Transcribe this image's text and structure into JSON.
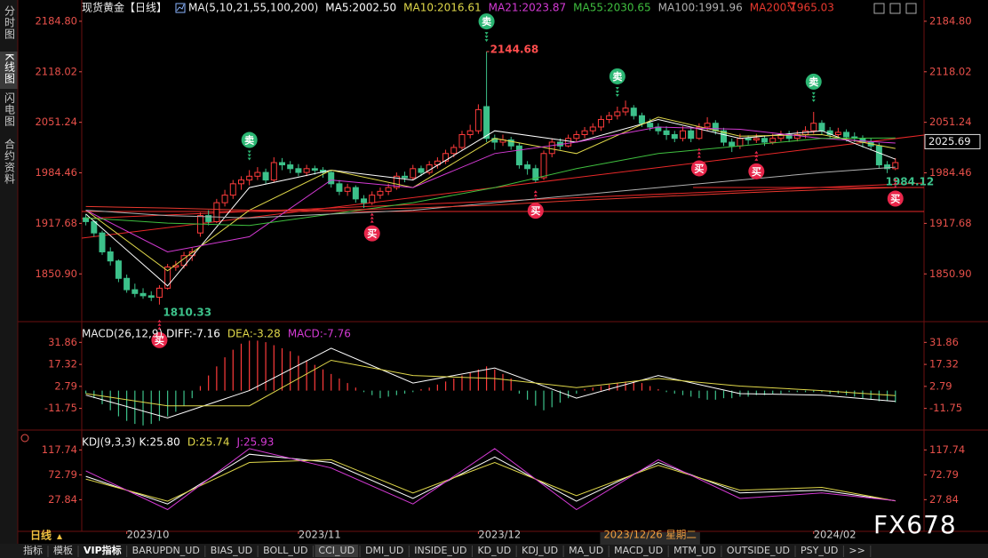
{
  "sidebar": [
    "分时图",
    "K线图",
    "闪电图",
    "合约资料"
  ],
  "period": "日线",
  "watermark": "FX678",
  "tabs": [
    "指标",
    "模板",
    "VIP指标",
    "BARUPDN_UD",
    "BIAS_UD",
    "BOLL_UD",
    "CCI_UD",
    "DMI_UD",
    "INSIDE_UD",
    "KD_UD",
    "KDJ_UD",
    "MA_UD",
    "MACD_UD",
    "MTM_UD",
    "OUTSIDE_UD",
    "PSY_UD",
    ">>"
  ],
  "chart_data": [
    {
      "type": "candlestick",
      "title": "现货黄金【日线】",
      "subtitle": "MA(5,10,21,55,100,200)",
      "up_color": "#ff3b3b",
      "down_color": "#3cc18a",
      "xlim": [
        -0.5,
        102.5
      ],
      "xticks": [
        {
          "value": 5,
          "label": "2023/10"
        },
        {
          "value": 26,
          "label": "2023/11"
        },
        {
          "value": 48,
          "label": "2023/12"
        },
        {
          "value": 89,
          "label": "2024/02"
        }
      ],
      "cursor": {
        "value": 69,
        "label": "2023/12/26 星期二"
      },
      "ylim": [
        1796,
        2198.8
      ],
      "yticks": [
        {
          "value": 2184.8,
          "label": "2184.80"
        },
        2118.02,
        2051.24,
        1984.46,
        1917.68,
        {
          "value": 1850.9,
          "label": "1850.90"
        }
      ],
      "price_tag": 2025.69,
      "sell_signals": {
        "label": "卖",
        "indices": [
          20,
          49,
          65,
          89
        ]
      },
      "buy_signals": {
        "label": "买",
        "indices": [
          9,
          35,
          55,
          75,
          82,
          99
        ]
      },
      "open": [
        1925,
        1920,
        1905,
        1880,
        1868,
        1845,
        1830,
        1825,
        1822,
        1820,
        1832,
        1860,
        1862,
        1875,
        1905,
        1928,
        1920,
        1945,
        1955,
        1970,
        1975,
        1980,
        1985,
        1975,
        1998,
        1995,
        1990,
        1985,
        1990,
        1988,
        1985,
        1970,
        1960,
        1965,
        1950,
        1945,
        1955,
        1960,
        1965,
        1980,
        1978,
        1990,
        1985,
        1995,
        2000,
        2010,
        2018,
        2035,
        2040,
        2072,
        2030,
        2025,
        2028,
        2020,
        1995,
        1990,
        1978,
        2010,
        2025,
        2020,
        2030,
        2035,
        2040,
        2045,
        2055,
        2060,
        2065,
        2070,
        2060,
        2050,
        2045,
        2040,
        2035,
        2030,
        2040,
        2030,
        2045,
        2050,
        2040,
        2025,
        2020,
        2030,
        2028,
        2030,
        2025,
        2030,
        2035,
        2030,
        2035,
        2040,
        2050,
        2040,
        2035,
        2038,
        2032,
        2030,
        2025,
        2020,
        1995,
        1990
      ],
      "high": [
        1930,
        1922,
        1908,
        1886,
        1870,
        1850,
        1838,
        1832,
        1828,
        1836,
        1864,
        1868,
        1880,
        1885,
        1932,
        1935,
        1950,
        1962,
        1975,
        1980,
        1988,
        1992,
        1990,
        2005,
        2004,
        2000,
        1996,
        1995,
        1994,
        1992,
        1988,
        1975,
        1970,
        1968,
        1955,
        1960,
        1965,
        1970,
        1985,
        1986,
        1995,
        1994,
        2000,
        2005,
        2015,
        2022,
        2040,
        2048,
        2075,
        2144.68,
        2035,
        2035,
        2032,
        2024,
        2000,
        1995,
        2014,
        2030,
        2030,
        2035,
        2040,
        2045,
        2050,
        2060,
        2065,
        2072,
        2080,
        2074,
        2064,
        2056,
        2050,
        2046,
        2040,
        2046,
        2044,
        2050,
        2058,
        2054,
        2044,
        2030,
        2036,
        2034,
        2036,
        2034,
        2036,
        2040,
        2040,
        2040,
        2046,
        2065,
        2054,
        2045,
        2044,
        2042,
        2038,
        2034,
        2030,
        2024,
        2000,
        2004
      ],
      "low": [
        1915,
        1900,
        1876,
        1862,
        1840,
        1826,
        1820,
        1818,
        1815,
        1810.33,
        1830,
        1855,
        1858,
        1868,
        1900,
        1915,
        1918,
        1940,
        1950,
        1962,
        1968,
        1975,
        1970,
        1972,
        1988,
        1984,
        1980,
        1980,
        1982,
        1978,
        1965,
        1955,
        1954,
        1945,
        1938,
        1942,
        1950,
        1955,
        1962,
        1972,
        1975,
        1980,
        1982,
        1990,
        1996,
        2005,
        2015,
        2030,
        2036,
        2025,
        2015,
        2020,
        2015,
        1990,
        1982,
        1972,
        1975,
        2005,
        2015,
        2018,
        2025,
        2030,
        2035,
        2040,
        2050,
        2055,
        2060,
        2055,
        2045,
        2040,
        2035,
        2028,
        2025,
        2026,
        2025,
        2028,
        2040,
        2035,
        2020,
        2012,
        2016,
        2022,
        2024,
        2020,
        2022,
        2026,
        2025,
        2026,
        2030,
        2036,
        2035,
        2030,
        2030,
        2026,
        2025,
        2018,
        2014,
        1990,
        1984.12,
        1988
      ],
      "close": [
        1920,
        1905,
        1880,
        1868,
        1845,
        1830,
        1825,
        1822,
        1820,
        1832,
        1860,
        1862,
        1875,
        1880,
        1928,
        1920,
        1945,
        1955,
        1970,
        1975,
        1980,
        1985,
        1975,
        1998,
        1995,
        1990,
        1985,
        1990,
        1988,
        1985,
        1970,
        1960,
        1965,
        1950,
        1945,
        1955,
        1960,
        1965,
        1980,
        1978,
        1990,
        1985,
        1995,
        2000,
        2010,
        2018,
        2035,
        2040,
        2068,
        2030,
        2025,
        2028,
        2020,
        1995,
        1990,
        1975,
        2010,
        2025,
        2020,
        2030,
        2035,
        2040,
        2045,
        2055,
        2060,
        2065,
        2070,
        2060,
        2050,
        2045,
        2040,
        2035,
        2030,
        2040,
        2030,
        2045,
        2050,
        2040,
        2025,
        2020,
        2030,
        2028,
        2030,
        2025,
        2030,
        2035,
        2030,
        2035,
        2040,
        2050,
        2040,
        2035,
        2038,
        2032,
        2030,
        2025,
        2020,
        1995,
        1990,
        1998
      ],
      "series": [
        {
          "name": "MA5:2002.50",
          "color": "#ffffff",
          "x": [
            0,
            10,
            20,
            30,
            40,
            50,
            60,
            70,
            80,
            90,
            99
          ],
          "values": [
            1930,
            1835,
            1965,
            1988,
            1975,
            2040,
            2025,
            2055,
            2030,
            2040,
            2002.5
          ]
        },
        {
          "name": "MA10:2016.61",
          "color": "#e0d84a",
          "x": [
            0,
            10,
            20,
            30,
            40,
            50,
            60,
            70,
            80,
            90,
            99
          ],
          "values": [
            1935,
            1855,
            1935,
            1988,
            1965,
            2030,
            2010,
            2058,
            2033,
            2035,
            2016.61
          ]
        },
        {
          "name": "MA21:2023.87",
          "color": "#d43ad4",
          "x": [
            0,
            10,
            20,
            30,
            40,
            50,
            60,
            70,
            80,
            90,
            99
          ],
          "values": [
            1935,
            1880,
            1900,
            1975,
            1965,
            2010,
            2025,
            2045,
            2042,
            2030,
            2023.87
          ]
        },
        {
          "name": "MA55:2030.65",
          "color": "#3fbf3f",
          "x": [
            0,
            10,
            20,
            30,
            40,
            50,
            60,
            70,
            80,
            90,
            99
          ],
          "values": [
            1925,
            1918,
            1915,
            1930,
            1945,
            1965,
            1990,
            2010,
            2020,
            2030,
            2030.65
          ]
        },
        {
          "name": "MA100:1991.96",
          "color": "#b0b0b0",
          "x": [
            0,
            10,
            20,
            30,
            40,
            50,
            60,
            70,
            80,
            90,
            99
          ],
          "values": [
            1935,
            1928,
            1925,
            1930,
            1935,
            1945,
            1955,
            1965,
            1975,
            1985,
            1991.96
          ]
        },
        {
          "name": "MA200:1965.03",
          "color": "#e8382e",
          "x": [
            0,
            10,
            20,
            30,
            40,
            50,
            60,
            70,
            80,
            90,
            99
          ],
          "values": [
            1940,
            1938,
            1935,
            1935,
            1938,
            1942,
            1948,
            1953,
            1958,
            1962,
            1965.03
          ]
        }
      ]
    },
    {
      "type": "bar",
      "title": "MACD(26,12,9)",
      "up_color": "#ff3b3b",
      "down_color": "#3cc18a",
      "ylim": [
        -23.7,
        43.2
      ],
      "yticks": [
        31.86,
        17.32,
        2.79,
        -11.75
      ],
      "values": [
        -2,
        -5,
        -9,
        -13,
        -17,
        -20,
        -22,
        -23,
        -22,
        -20,
        -17,
        -14,
        -10,
        -5,
        3,
        10,
        16,
        22,
        27,
        31,
        33,
        33,
        32,
        30,
        28,
        26,
        23,
        20,
        17,
        14,
        11,
        8,
        5,
        2,
        -1,
        -3,
        -5,
        -4,
        -3,
        -2,
        -1,
        1,
        2,
        4,
        6,
        8,
        10,
        12,
        14,
        16,
        14,
        11,
        8,
        -2,
        -6,
        -10,
        -13,
        -11,
        -8,
        -5,
        -2,
        1,
        2,
        3,
        4,
        5,
        6,
        6,
        5,
        3,
        1,
        -1,
        -2,
        -3,
        -4,
        -5,
        -6,
        -6,
        -5,
        -5,
        -4,
        -4,
        -3,
        -3,
        -2,
        -2,
        -1,
        -1,
        -1,
        -1,
        -1,
        -2,
        -2,
        -3,
        -4,
        -5,
        -6,
        -7,
        -7,
        -7.76
      ],
      "series": [
        {
          "name": "DIFF:-7.16",
          "color": "#ffffff",
          "x": [
            0,
            10,
            20,
            30,
            40,
            50,
            60,
            70,
            80,
            90,
            99
          ],
          "values": [
            -3,
            -18,
            0,
            28,
            5,
            15,
            -5,
            10,
            -2,
            -3,
            -7.16
          ]
        },
        {
          "name": "DEA:-3.28",
          "color": "#e0d84a",
          "x": [
            0,
            10,
            20,
            30,
            40,
            50,
            60,
            70,
            80,
            90,
            99
          ],
          "values": [
            -2,
            -10,
            -10,
            20,
            10,
            8,
            2,
            8,
            3,
            0,
            -3.28
          ]
        },
        {
          "name": "MACD:-7.76",
          "color": "#d43ad4",
          "x": [],
          "values": []
        }
      ]
    },
    {
      "type": "line",
      "title": "KDJ(9,3,3)",
      "ylim": [
        -29.4,
        147.2
      ],
      "yticks": [
        117.74,
        72.79,
        27.84
      ],
      "series": [
        {
          "name": "K:25.80",
          "color": "#ffffff",
          "x": [
            0,
            10,
            20,
            30,
            40,
            50,
            60,
            70,
            80,
            90,
            99
          ],
          "values": [
            70,
            20,
            110,
            95,
            30,
            105,
            25,
            95,
            40,
            45,
            25.8
          ]
        },
        {
          "name": "D:25.74",
          "color": "#e0d84a",
          "x": [
            0,
            10,
            20,
            30,
            40,
            50,
            60,
            70,
            80,
            90,
            99
          ],
          "values": [
            65,
            25,
            95,
            100,
            40,
            95,
            35,
            90,
            45,
            50,
            25.74
          ]
        },
        {
          "name": "J:25.93",
          "color": "#d43ad4",
          "x": [
            0,
            10,
            20,
            30,
            40,
            50,
            60,
            70,
            80,
            90,
            99
          ],
          "values": [
            80,
            10,
            120,
            85,
            20,
            120,
            10,
            100,
            30,
            40,
            25.93
          ]
        }
      ]
    }
  ]
}
